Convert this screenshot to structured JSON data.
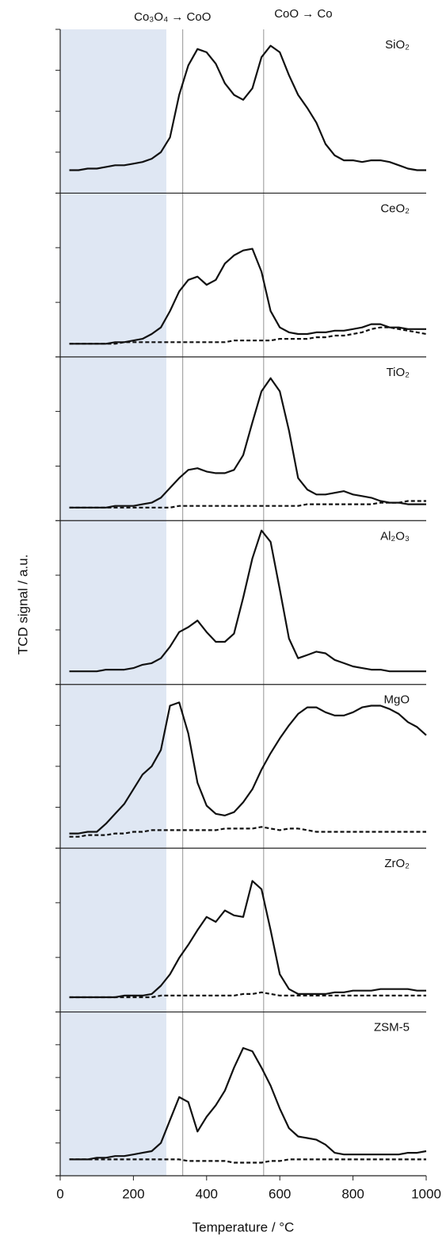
{
  "chart_data": [
    {
      "type": "line",
      "label": "SiO₂",
      "ylabel": "TCD signal / a.u.",
      "shade": {
        "range": [
          0,
          290
        ],
        "color": "#dfe7f3"
      },
      "reference_lines": [
        {
          "x": 335,
          "label": "Co₃O₄ → CoO"
        },
        {
          "x": 556,
          "label": "CoO → Co"
        }
      ],
      "xlim": [
        0,
        1000
      ],
      "ylim": [
        0,
        1
      ],
      "yticks": [
        0.25,
        0.5,
        0.75
      ],
      "x": [
        25,
        50,
        75,
        100,
        125,
        150,
        175,
        200,
        225,
        250,
        275,
        300,
        325,
        350,
        375,
        400,
        425,
        450,
        475,
        500,
        525,
        550,
        575,
        600,
        625,
        650,
        675,
        700,
        725,
        750,
        775,
        800,
        825,
        850,
        875,
        900,
        925,
        950,
        975,
        1000
      ],
      "series": [
        {
          "color": "#111111",
          "dashed": false,
          "values": [
            0.14,
            0.14,
            0.15,
            0.15,
            0.16,
            0.17,
            0.17,
            0.18,
            0.19,
            0.21,
            0.25,
            0.34,
            0.6,
            0.78,
            0.88,
            0.86,
            0.79,
            0.67,
            0.6,
            0.57,
            0.64,
            0.83,
            0.9,
            0.86,
            0.72,
            0.6,
            0.52,
            0.43,
            0.3,
            0.23,
            0.2,
            0.2,
            0.19,
            0.2,
            0.2,
            0.19,
            0.17,
            0.15,
            0.14,
            0.14
          ]
        }
      ]
    },
    {
      "type": "line",
      "label": "CeO₂",
      "xlim": [
        0,
        1000
      ],
      "ylim": [
        0,
        1
      ],
      "yticks": [
        0.333,
        0.667
      ],
      "x": [
        25,
        50,
        75,
        100,
        125,
        150,
        175,
        200,
        225,
        250,
        275,
        300,
        325,
        350,
        375,
        400,
        425,
        450,
        475,
        500,
        525,
        550,
        575,
        600,
        625,
        650,
        675,
        700,
        725,
        750,
        775,
        800,
        825,
        850,
        875,
        900,
        925,
        950,
        975,
        1000
      ],
      "series": [
        {
          "color": "#111111",
          "dashed": false,
          "values": [
            0.08,
            0.08,
            0.08,
            0.08,
            0.08,
            0.09,
            0.09,
            0.1,
            0.11,
            0.14,
            0.18,
            0.28,
            0.4,
            0.47,
            0.49,
            0.44,
            0.47,
            0.57,
            0.62,
            0.65,
            0.66,
            0.52,
            0.28,
            0.18,
            0.15,
            0.14,
            0.14,
            0.15,
            0.15,
            0.16,
            0.16,
            0.17,
            0.18,
            0.2,
            0.2,
            0.18,
            0.18,
            0.17,
            0.17,
            0.17
          ]
        },
        {
          "color": "#111111",
          "dashed": true,
          "values": [
            0.08,
            0.08,
            0.08,
            0.08,
            0.08,
            0.08,
            0.09,
            0.09,
            0.09,
            0.09,
            0.09,
            0.09,
            0.09,
            0.09,
            0.09,
            0.09,
            0.09,
            0.09,
            0.1,
            0.1,
            0.1,
            0.1,
            0.1,
            0.11,
            0.11,
            0.11,
            0.11,
            0.12,
            0.12,
            0.13,
            0.13,
            0.14,
            0.15,
            0.17,
            0.18,
            0.18,
            0.17,
            0.16,
            0.15,
            0.14
          ]
        }
      ]
    },
    {
      "type": "line",
      "label": "TiO₂",
      "xlim": [
        0,
        1000
      ],
      "ylim": [
        0,
        1
      ],
      "yticks": [
        0.333,
        0.667
      ],
      "x": [
        25,
        50,
        75,
        100,
        125,
        150,
        175,
        200,
        225,
        250,
        275,
        300,
        325,
        350,
        375,
        400,
        425,
        450,
        475,
        500,
        525,
        550,
        575,
        600,
        625,
        650,
        675,
        700,
        725,
        750,
        775,
        800,
        825,
        850,
        875,
        900,
        925,
        950,
        975,
        1000
      ],
      "series": [
        {
          "color": "#111111",
          "dashed": false,
          "values": [
            0.08,
            0.08,
            0.08,
            0.08,
            0.08,
            0.09,
            0.09,
            0.09,
            0.1,
            0.11,
            0.14,
            0.2,
            0.26,
            0.31,
            0.32,
            0.3,
            0.29,
            0.29,
            0.31,
            0.4,
            0.6,
            0.79,
            0.87,
            0.79,
            0.55,
            0.26,
            0.19,
            0.16,
            0.16,
            0.17,
            0.18,
            0.16,
            0.15,
            0.14,
            0.12,
            0.11,
            0.11,
            0.1,
            0.1,
            0.1
          ]
        },
        {
          "color": "#111111",
          "dashed": true,
          "values": [
            0.08,
            0.08,
            0.08,
            0.08,
            0.08,
            0.08,
            0.08,
            0.08,
            0.08,
            0.08,
            0.08,
            0.08,
            0.09,
            0.09,
            0.09,
            0.09,
            0.09,
            0.09,
            0.09,
            0.09,
            0.09,
            0.09,
            0.09,
            0.09,
            0.09,
            0.09,
            0.1,
            0.1,
            0.1,
            0.1,
            0.1,
            0.1,
            0.1,
            0.1,
            0.11,
            0.11,
            0.11,
            0.12,
            0.12,
            0.12
          ]
        }
      ]
    },
    {
      "type": "line",
      "label": "Al₂O₃",
      "xlim": [
        0,
        1000
      ],
      "ylim": [
        0,
        1
      ],
      "yticks": [
        0.333,
        0.667
      ],
      "x": [
        25,
        50,
        75,
        100,
        125,
        150,
        175,
        200,
        225,
        250,
        275,
        300,
        325,
        350,
        375,
        400,
        425,
        450,
        475,
        500,
        525,
        550,
        575,
        600,
        625,
        650,
        675,
        700,
        725,
        750,
        775,
        800,
        825,
        850,
        875,
        900,
        925,
        950,
        975,
        1000
      ],
      "series": [
        {
          "color": "#111111",
          "dashed": false,
          "values": [
            0.08,
            0.08,
            0.08,
            0.08,
            0.09,
            0.09,
            0.09,
            0.1,
            0.12,
            0.13,
            0.16,
            0.23,
            0.32,
            0.35,
            0.39,
            0.32,
            0.26,
            0.26,
            0.31,
            0.53,
            0.77,
            0.94,
            0.87,
            0.58,
            0.28,
            0.16,
            0.18,
            0.2,
            0.19,
            0.15,
            0.13,
            0.11,
            0.1,
            0.09,
            0.09,
            0.08,
            0.08,
            0.08,
            0.08,
            0.08
          ]
        }
      ]
    },
    {
      "type": "line",
      "label": "MgO",
      "xlim": [
        0,
        1000
      ],
      "ylim": [
        0,
        1
      ],
      "yticks": [
        0.25,
        0.5,
        0.75
      ],
      "x": [
        25,
        50,
        75,
        100,
        125,
        150,
        175,
        200,
        225,
        250,
        275,
        300,
        325,
        350,
        375,
        400,
        425,
        450,
        475,
        500,
        525,
        550,
        575,
        600,
        625,
        650,
        675,
        700,
        725,
        750,
        775,
        800,
        825,
        850,
        875,
        900,
        925,
        950,
        975,
        1000
      ],
      "series": [
        {
          "color": "#111111",
          "dashed": false,
          "values": [
            0.09,
            0.09,
            0.1,
            0.1,
            0.15,
            0.21,
            0.27,
            0.36,
            0.45,
            0.5,
            0.6,
            0.87,
            0.89,
            0.7,
            0.4,
            0.26,
            0.21,
            0.2,
            0.22,
            0.28,
            0.36,
            0.48,
            0.58,
            0.67,
            0.75,
            0.82,
            0.86,
            0.86,
            0.83,
            0.81,
            0.81,
            0.83,
            0.86,
            0.87,
            0.87,
            0.85,
            0.82,
            0.77,
            0.74,
            0.69
          ]
        },
        {
          "color": "#111111",
          "dashed": true,
          "values": [
            0.07,
            0.07,
            0.08,
            0.08,
            0.08,
            0.09,
            0.09,
            0.1,
            0.1,
            0.11,
            0.11,
            0.11,
            0.11,
            0.11,
            0.11,
            0.11,
            0.11,
            0.12,
            0.12,
            0.12,
            0.12,
            0.13,
            0.12,
            0.11,
            0.12,
            0.12,
            0.11,
            0.1,
            0.1,
            0.1,
            0.1,
            0.1,
            0.1,
            0.1,
            0.1,
            0.1,
            0.1,
            0.1,
            0.1,
            0.1
          ]
        }
      ]
    },
    {
      "type": "line",
      "label": "ZrO₂",
      "xlim": [
        0,
        1000
      ],
      "ylim": [
        0,
        1
      ],
      "yticks": [
        0.333,
        0.667
      ],
      "x": [
        25,
        50,
        75,
        100,
        125,
        150,
        175,
        200,
        225,
        250,
        275,
        300,
        325,
        350,
        375,
        400,
        425,
        450,
        475,
        500,
        525,
        550,
        575,
        600,
        625,
        650,
        675,
        700,
        725,
        750,
        775,
        800,
        825,
        850,
        875,
        900,
        925,
        950,
        975,
        1000
      ],
      "series": [
        {
          "color": "#111111",
          "dashed": false,
          "values": [
            0.09,
            0.09,
            0.09,
            0.09,
            0.09,
            0.09,
            0.1,
            0.1,
            0.1,
            0.11,
            0.16,
            0.23,
            0.33,
            0.41,
            0.5,
            0.58,
            0.55,
            0.62,
            0.59,
            0.58,
            0.8,
            0.75,
            0.5,
            0.23,
            0.14,
            0.11,
            0.11,
            0.11,
            0.11,
            0.12,
            0.12,
            0.13,
            0.13,
            0.13,
            0.14,
            0.14,
            0.14,
            0.14,
            0.13,
            0.13
          ]
        },
        {
          "color": "#111111",
          "dashed": true,
          "values": [
            0.09,
            0.09,
            0.09,
            0.09,
            0.09,
            0.09,
            0.09,
            0.09,
            0.09,
            0.09,
            0.1,
            0.1,
            0.1,
            0.1,
            0.1,
            0.1,
            0.1,
            0.1,
            0.1,
            0.11,
            0.11,
            0.12,
            0.11,
            0.1,
            0.1,
            0.1,
            0.1,
            0.1,
            0.1,
            0.1,
            0.1,
            0.1,
            0.1,
            0.1,
            0.1,
            0.1,
            0.1,
            0.1,
            0.1,
            0.1
          ]
        }
      ]
    },
    {
      "type": "line",
      "label": "ZSM-5",
      "xlabel": "Temperature / °C",
      "xticks": [
        0,
        200,
        400,
        600,
        800,
        1000
      ],
      "xlim": [
        0,
        1000
      ],
      "ylim": [
        0,
        1
      ],
      "yticks": [
        0.2,
        0.4,
        0.6,
        0.8
      ],
      "x": [
        25,
        50,
        75,
        100,
        125,
        150,
        175,
        200,
        225,
        250,
        275,
        300,
        325,
        350,
        375,
        400,
        425,
        450,
        475,
        500,
        525,
        550,
        575,
        600,
        625,
        650,
        675,
        700,
        725,
        750,
        775,
        800,
        825,
        850,
        875,
        900,
        925,
        950,
        975,
        1000
      ],
      "series": [
        {
          "color": "#111111",
          "dashed": false,
          "values": [
            0.1,
            0.1,
            0.1,
            0.11,
            0.11,
            0.12,
            0.12,
            0.13,
            0.14,
            0.15,
            0.2,
            0.34,
            0.48,
            0.45,
            0.27,
            0.36,
            0.43,
            0.52,
            0.66,
            0.78,
            0.76,
            0.66,
            0.55,
            0.41,
            0.29,
            0.24,
            0.23,
            0.22,
            0.19,
            0.14,
            0.13,
            0.13,
            0.13,
            0.13,
            0.13,
            0.13,
            0.13,
            0.14,
            0.14,
            0.15
          ]
        },
        {
          "color": "#111111",
          "dashed": true,
          "values": [
            0.1,
            0.1,
            0.1,
            0.1,
            0.1,
            0.1,
            0.1,
            0.1,
            0.1,
            0.1,
            0.1,
            0.1,
            0.1,
            0.09,
            0.09,
            0.09,
            0.09,
            0.09,
            0.08,
            0.08,
            0.08,
            0.08,
            0.09,
            0.09,
            0.1,
            0.1,
            0.1,
            0.1,
            0.1,
            0.1,
            0.1,
            0.1,
            0.1,
            0.1,
            0.1,
            0.1,
            0.1,
            0.1,
            0.1,
            0.1
          ]
        }
      ]
    }
  ]
}
